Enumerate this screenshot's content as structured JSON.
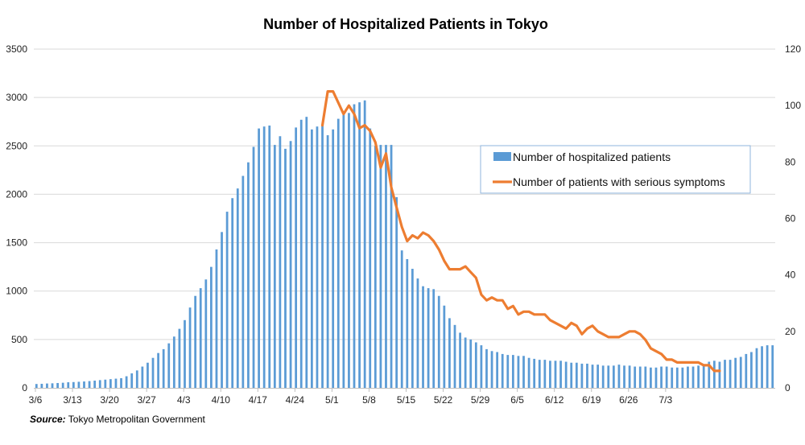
{
  "chart_data": {
    "type": "bar+line",
    "title": "Number of Hospitalized Patients in Tokyo",
    "xlabel": "",
    "ylabel": "",
    "ylabel_right": "",
    "x_start": "3/6",
    "x_ticks": [
      "3/6",
      "3/13",
      "3/20",
      "3/27",
      "4/3",
      "4/10",
      "4/17",
      "4/24",
      "5/1",
      "5/8",
      "5/15",
      "5/22",
      "5/29",
      "6/5",
      "6/12",
      "6/19",
      "6/26",
      "7/3"
    ],
    "ylim_left": [
      0,
      3500
    ],
    "yticks_left": [
      0,
      500,
      1000,
      1500,
      2000,
      2500,
      3000,
      3500
    ],
    "ylim_right": [
      0,
      120
    ],
    "yticks_right": [
      0,
      20,
      40,
      60,
      80,
      100,
      120
    ],
    "grid": true,
    "legend_position": "right-center",
    "series": [
      {
        "name": "Number of hospitalized patients",
        "kind": "bar",
        "axis": "left",
        "color": "#5b9bd5",
        "values": [
          40,
          42,
          45,
          47,
          50,
          53,
          58,
          60,
          63,
          66,
          70,
          75,
          80,
          85,
          90,
          95,
          100,
          120,
          150,
          180,
          220,
          260,
          310,
          360,
          400,
          460,
          530,
          610,
          700,
          830,
          950,
          1030,
          1120,
          1250,
          1430,
          1610,
          1820,
          1960,
          2060,
          2190,
          2330,
          2490,
          2680,
          2700,
          2710,
          2510,
          2600,
          2470,
          2550,
          2690,
          2770,
          2800,
          2670,
          2700,
          2720,
          2610,
          2670,
          2780,
          2820,
          2840,
          2930,
          2950,
          2970,
          2680,
          2500,
          2510,
          2510,
          2510,
          1970,
          1420,
          1330,
          1230,
          1130,
          1050,
          1030,
          1020,
          950,
          850,
          720,
          650,
          570,
          520,
          500,
          470,
          440,
          400,
          380,
          370,
          350,
          340,
          340,
          330,
          330,
          310,
          300,
          290,
          290,
          280,
          280,
          280,
          270,
          260,
          260,
          250,
          250,
          240,
          240,
          230,
          230,
          230,
          240,
          230,
          230,
          220,
          220,
          220,
          210,
          210,
          220,
          220,
          210,
          210,
          210,
          220,
          220,
          230,
          240,
          270,
          280,
          270,
          290,
          290,
          310,
          320,
          350,
          370,
          410,
          430,
          440,
          440
        ]
      },
      {
        "name": "Number of patients with serious symptoms",
        "kind": "line",
        "axis": "right",
        "color": "#ed7d31",
        "start_index": 54,
        "values": [
          93,
          105,
          105,
          101,
          97,
          100,
          97,
          92,
          93,
          91,
          87,
          78,
          83,
          71,
          64,
          57,
          52,
          54,
          53,
          55,
          54,
          52,
          49,
          45,
          42,
          42,
          42,
          43,
          41,
          39,
          33,
          31,
          32,
          31,
          31,
          28,
          29,
          26,
          27,
          27,
          26,
          26,
          26,
          24,
          23,
          22,
          21,
          23,
          22,
          19,
          21,
          22,
          20,
          19,
          18,
          18,
          18,
          19,
          20,
          20,
          19,
          17,
          14,
          13,
          12,
          10,
          10,
          9,
          9,
          9,
          9,
          9,
          8,
          8,
          6,
          6
        ]
      }
    ]
  },
  "source": {
    "label": "Source:",
    "text": " Tokyo Metropolitan Government"
  }
}
